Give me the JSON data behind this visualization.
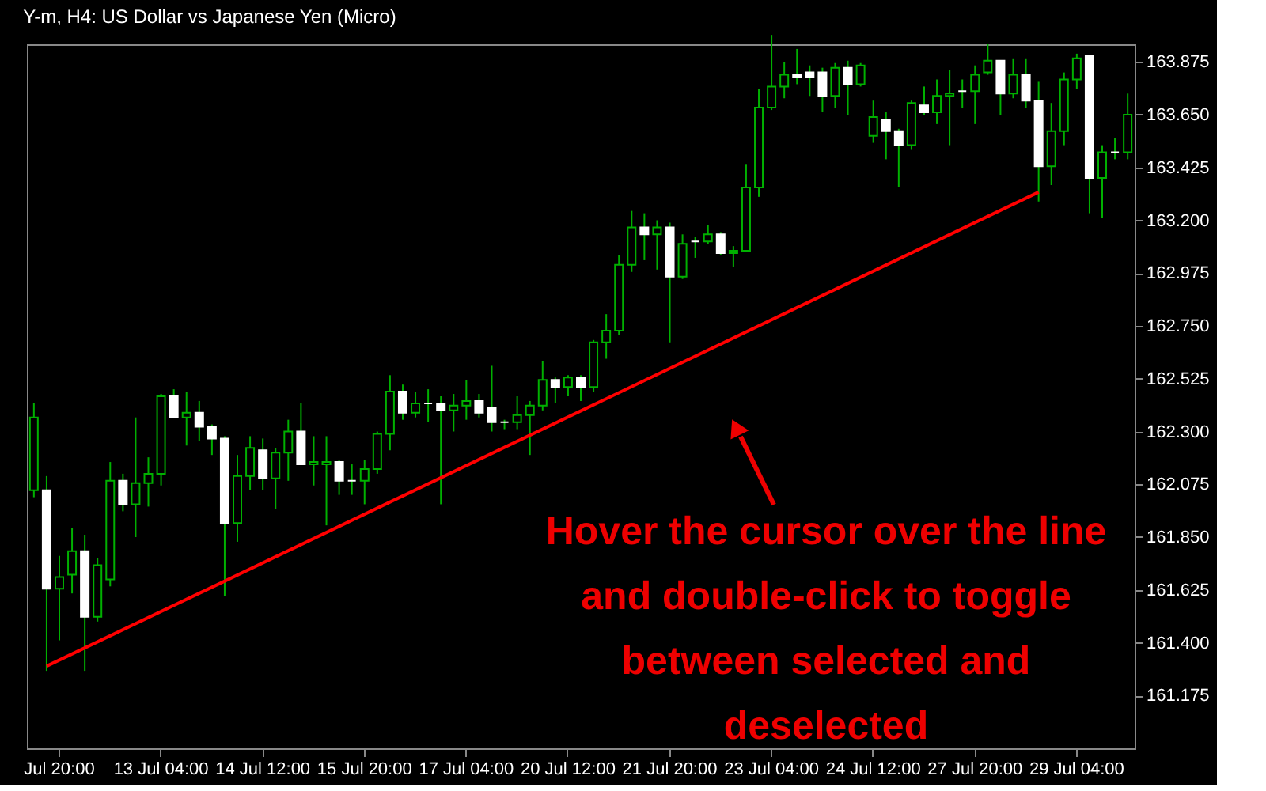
{
  "chart_data": {
    "type": "candlestick",
    "title": "Y-m, H4:  US Dollar vs Japanese Yen (Micro)",
    "categories": [
      null,
      null,
      "Jul 20:00",
      null,
      null,
      null,
      null,
      null,
      null,
      null,
      "13 Jul 04:00",
      null,
      null,
      null,
      null,
      null,
      null,
      null,
      "14 Jul 12:00",
      null,
      null,
      null,
      null,
      null,
      null,
      null,
      "15 Jul 20:00",
      null,
      null,
      null,
      null,
      null,
      null,
      null,
      "17 Jul 04:00",
      null,
      null,
      null,
      null,
      null,
      null,
      null,
      "20 Jul 12:00",
      null,
      null,
      null,
      null,
      null,
      null,
      null,
      "21 Jul 20:00",
      null,
      null,
      null,
      null,
      null,
      null,
      null,
      "23 Jul 04:00",
      null,
      null,
      null,
      null,
      null,
      null,
      null,
      "24 Jul 12:00",
      null,
      null,
      null,
      null,
      null,
      null,
      null,
      "27 Jul 20:00",
      null,
      null,
      null,
      null,
      null,
      null,
      null,
      "29 Jul 04:00",
      null,
      null,
      null,
      null
    ],
    "series": [
      {
        "type": "candlestick",
        "color": "#00b000",
        "ohlc": [
          [
            162.05,
            162.42,
            162.02,
            162.36
          ],
          [
            162.05,
            162.11,
            161.28,
            161.63
          ],
          [
            161.63,
            161.77,
            161.41,
            161.68
          ],
          [
            161.69,
            161.89,
            161.61,
            161.79
          ],
          [
            161.79,
            161.86,
            161.28,
            161.51
          ],
          [
            161.51,
            161.76,
            161.49,
            161.73
          ],
          [
            161.67,
            162.17,
            161.64,
            162.09
          ],
          [
            162.09,
            162.12,
            161.96,
            161.99
          ],
          [
            161.99,
            162.36,
            161.85,
            162.08
          ],
          [
            162.08,
            162.19,
            161.98,
            162.12
          ],
          [
            162.12,
            162.46,
            162.07,
            162.45
          ],
          [
            162.45,
            162.48,
            162.36,
            162.36
          ],
          [
            162.36,
            162.47,
            162.24,
            162.38
          ],
          [
            162.38,
            162.43,
            162.26,
            162.32
          ],
          [
            162.32,
            162.33,
            162.2,
            162.27
          ],
          [
            162.27,
            162.28,
            161.6,
            161.91
          ],
          [
            161.91,
            162.2,
            161.83,
            162.11
          ],
          [
            162.11,
            162.28,
            162.05,
            162.23
          ],
          [
            162.22,
            162.27,
            162.05,
            162.1
          ],
          [
            162.1,
            162.23,
            161.97,
            162.21
          ],
          [
            162.21,
            162.35,
            162.09,
            162.3
          ],
          [
            162.3,
            162.42,
            162.16,
            162.16
          ],
          [
            162.16,
            162.28,
            162.07,
            162.17
          ],
          [
            162.16,
            162.28,
            161.9,
            162.17
          ],
          [
            162.17,
            162.18,
            162.03,
            162.09
          ],
          [
            162.09,
            162.16,
            162.03,
            162.09
          ],
          [
            162.09,
            162.18,
            161.99,
            162.14
          ],
          [
            162.14,
            162.3,
            162.12,
            162.29
          ],
          [
            162.29,
            162.54,
            162.22,
            162.47
          ],
          [
            162.47,
            162.5,
            162.35,
            162.38
          ],
          [
            162.38,
            162.47,
            162.36,
            162.42
          ],
          [
            162.42,
            162.48,
            162.34,
            162.42
          ],
          [
            162.42,
            162.45,
            161.99,
            162.39
          ],
          [
            162.39,
            162.46,
            162.3,
            162.41
          ],
          [
            162.41,
            162.52,
            162.35,
            162.43
          ],
          [
            162.43,
            162.46,
            162.36,
            162.38
          ],
          [
            162.4,
            162.58,
            162.3,
            162.34
          ],
          [
            162.34,
            162.35,
            162.31,
            162.34
          ],
          [
            162.34,
            162.45,
            162.31,
            162.37
          ],
          [
            162.37,
            162.43,
            162.2,
            162.41
          ],
          [
            162.41,
            162.6,
            162.39,
            162.52
          ],
          [
            162.52,
            162.53,
            162.42,
            162.49
          ],
          [
            162.49,
            162.54,
            162.45,
            162.53
          ],
          [
            162.53,
            162.54,
            162.43,
            162.49
          ],
          [
            162.49,
            162.69,
            162.47,
            162.68
          ],
          [
            162.68,
            162.8,
            162.61,
            162.73
          ],
          [
            162.73,
            163.05,
            162.71,
            163.01
          ],
          [
            163.01,
            163.24,
            162.98,
            163.17
          ],
          [
            163.17,
            163.23,
            163.03,
            163.14
          ],
          [
            163.14,
            163.2,
            162.99,
            163.17
          ],
          [
            163.17,
            163.19,
            162.68,
            162.96
          ],
          [
            162.96,
            163.14,
            162.95,
            163.1
          ],
          [
            163.11,
            163.13,
            163.04,
            163.11
          ],
          [
            163.11,
            163.18,
            163.1,
            163.14
          ],
          [
            163.14,
            163.15,
            163.05,
            163.06
          ],
          [
            163.06,
            163.09,
            163.0,
            163.07
          ],
          [
            163.07,
            163.44,
            163.07,
            163.34
          ],
          [
            163.34,
            163.76,
            163.3,
            163.68
          ],
          [
            163.68,
            163.99,
            163.67,
            163.77
          ],
          [
            163.77,
            163.875,
            163.72,
            163.82
          ],
          [
            163.82,
            163.93,
            163.78,
            163.81
          ],
          [
            163.83,
            163.86,
            163.73,
            163.81
          ],
          [
            163.83,
            163.85,
            163.66,
            163.73
          ],
          [
            163.73,
            163.87,
            163.68,
            163.85
          ],
          [
            163.85,
            163.88,
            163.65,
            163.78
          ],
          [
            163.78,
            163.87,
            163.77,
            163.86
          ],
          [
            163.56,
            163.71,
            163.53,
            163.64
          ],
          [
            163.63,
            163.66,
            163.46,
            163.58
          ],
          [
            163.58,
            163.59,
            163.34,
            163.52
          ],
          [
            163.52,
            163.71,
            163.5,
            163.7
          ],
          [
            163.69,
            163.77,
            163.65,
            163.66
          ],
          [
            163.66,
            163.8,
            163.61,
            163.73
          ],
          [
            163.73,
            163.84,
            163.52,
            163.74
          ],
          [
            163.75,
            163.8,
            163.68,
            163.75
          ],
          [
            163.75,
            163.86,
            163.61,
            163.82
          ],
          [
            163.83,
            163.95,
            163.82,
            163.88
          ],
          [
            163.88,
            163.88,
            163.65,
            163.74
          ],
          [
            163.74,
            163.89,
            163.72,
            163.82
          ],
          [
            163.82,
            163.89,
            163.68,
            163.71
          ],
          [
            163.71,
            163.79,
            163.28,
            163.43
          ],
          [
            163.43,
            163.7,
            163.35,
            163.58
          ],
          [
            163.58,
            163.83,
            163.52,
            163.8
          ],
          [
            163.8,
            163.91,
            163.76,
            163.89
          ],
          [
            163.9,
            163.9,
            163.23,
            163.38
          ],
          [
            163.38,
            163.52,
            163.21,
            163.49
          ],
          [
            163.49,
            163.55,
            163.46,
            163.49
          ],
          [
            163.49,
            163.74,
            163.46,
            163.65
          ]
        ],
        "colors": [
          "#00b000",
          "#ffffff",
          "#00b000",
          "#00b000",
          "#ffffff",
          "#00b000",
          "#00b000",
          "#ffffff",
          "#00b000",
          "#00b000",
          "#00b000",
          "#ffffff",
          "#00b000",
          "#ffffff",
          "#ffffff",
          "#ffffff",
          "#00b000",
          "#00b000",
          "#ffffff",
          "#00b000",
          "#00b000",
          "#ffffff",
          "#00b000",
          "#00b000",
          "#ffffff",
          "#ffffff",
          "#00b000",
          "#00b000",
          "#00b000",
          "#ffffff",
          "#00b000",
          "#ffffff",
          "#ffffff",
          "#00b000",
          "#00b000",
          "#ffffff",
          "#ffffff",
          "#ffffff",
          "#00b000",
          "#00b000",
          "#00b000",
          "#ffffff",
          "#00b000",
          "#ffffff",
          "#00b000",
          "#00b000",
          "#00b000",
          "#00b000",
          "#ffffff",
          "#00b000",
          "#ffffff",
          "#00b000",
          "#ffffff",
          "#00b000",
          "#ffffff",
          "#00b000",
          "#00b000",
          "#00b000",
          "#00b000",
          "#00b000",
          "#ffffff",
          "#ffffff",
          "#ffffff",
          "#00b000",
          "#ffffff",
          "#00b000",
          "#00b000",
          "#ffffff",
          "#ffffff",
          "#00b000",
          "#ffffff",
          "#00b000",
          "#00b000",
          "#ffffff",
          "#00b000",
          "#00b000",
          "#ffffff",
          "#00b000",
          "#ffffff",
          "#ffffff",
          "#00b000",
          "#00b000",
          "#00b000",
          "#ffffff",
          "#00b000",
          "#ffffff",
          "#00b000"
        ]
      },
      {
        "type": "line",
        "color": "#ff0000",
        "values": [
          null,
          161.3,
          null,
          null,
          null,
          null,
          null,
          null,
          null,
          null,
          null,
          null,
          null,
          null,
          null,
          null,
          null,
          null,
          null,
          null,
          null,
          null,
          null,
          null,
          null,
          null,
          null,
          null,
          null,
          null,
          null,
          null,
          null,
          null,
          null,
          null,
          null,
          null,
          null,
          null,
          null,
          null,
          null,
          null,
          null,
          null,
          null,
          null,
          null,
          null,
          null,
          null,
          null,
          null,
          null,
          null,
          null,
          null,
          null,
          null,
          null,
          null,
          null,
          null,
          null,
          null,
          null,
          null,
          null,
          null,
          null,
          null,
          null,
          null,
          null,
          null,
          null,
          null,
          null,
          163.32,
          null,
          null,
          null,
          null,
          null,
          null,
          null
        ]
      }
    ],
    "ylim": [
      160.95,
      163.95
    ],
    "yticks": [
      161.175,
      {
        "value": 161.4,
        "label": "161.400"
      },
      161.625,
      {
        "value": 161.85,
        "label": "161.850"
      },
      162.075,
      {
        "value": 162.3,
        "label": "162.300"
      },
      162.525,
      {
        "value": 162.75,
        "label": "162.750"
      },
      162.975,
      {
        "value": 163.2,
        "label": "163.200"
      },
      163.425,
      {
        "value": 163.65,
        "label": "163.650"
      },
      163.875
    ],
    "annotations": [
      "Hover the cursor over the line and double-click to toggle between selected and deselected"
    ],
    "grid": false,
    "legend": false
  }
}
